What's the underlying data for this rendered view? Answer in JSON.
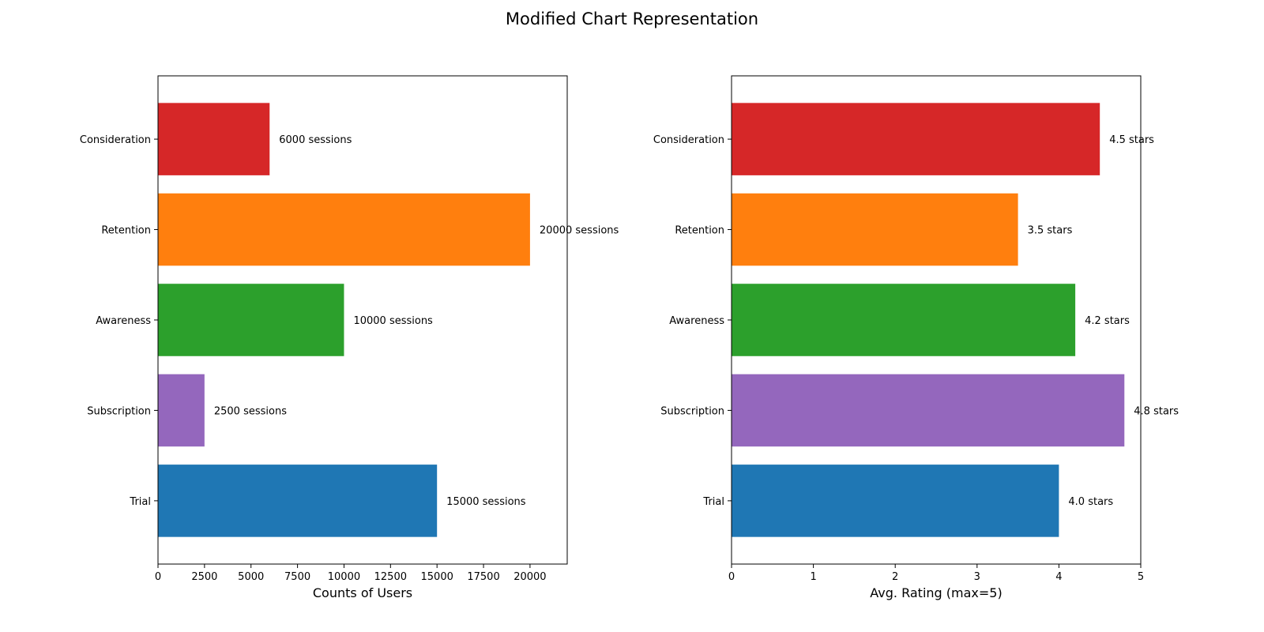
{
  "title": "Modified Chart Representation",
  "chart_data": [
    {
      "type": "bar",
      "orientation": "horizontal",
      "categories": [
        "Trial",
        "Subscription",
        "Awareness",
        "Retention",
        "Consideration"
      ],
      "values": [
        15000,
        2500,
        10000,
        20000,
        6000
      ],
      "colors": [
        "#1f77b4",
        "#9467bd",
        "#2ca02c",
        "#ff7f0e",
        "#d62728"
      ],
      "data_labels": [
        "15000 sessions",
        "2500 sessions",
        "10000 sessions",
        "20000 sessions",
        "6000 sessions"
      ],
      "xlabel": "Counts of Users",
      "ylabel": "",
      "xlim": [
        0,
        22000
      ],
      "xticks": [
        0,
        2500,
        5000,
        7500,
        10000,
        12500,
        15000,
        17500,
        20000
      ],
      "grid": false
    },
    {
      "type": "bar",
      "orientation": "horizontal",
      "categories": [
        "Trial",
        "Subscription",
        "Awareness",
        "Retention",
        "Consideration"
      ],
      "values": [
        4.0,
        4.8,
        4.2,
        3.5,
        4.5
      ],
      "colors": [
        "#1f77b4",
        "#9467bd",
        "#2ca02c",
        "#ff7f0e",
        "#d62728"
      ],
      "data_labels": [
        "4.0 stars",
        "4.8 stars",
        "4.2 stars",
        "3.5 stars",
        "4.5 stars"
      ],
      "xlabel": "Avg. Rating (max=5)",
      "ylabel": "",
      "xlim": [
        0,
        5
      ],
      "xticks": [
        0,
        1,
        2,
        3,
        4,
        5
      ],
      "grid": false
    }
  ]
}
